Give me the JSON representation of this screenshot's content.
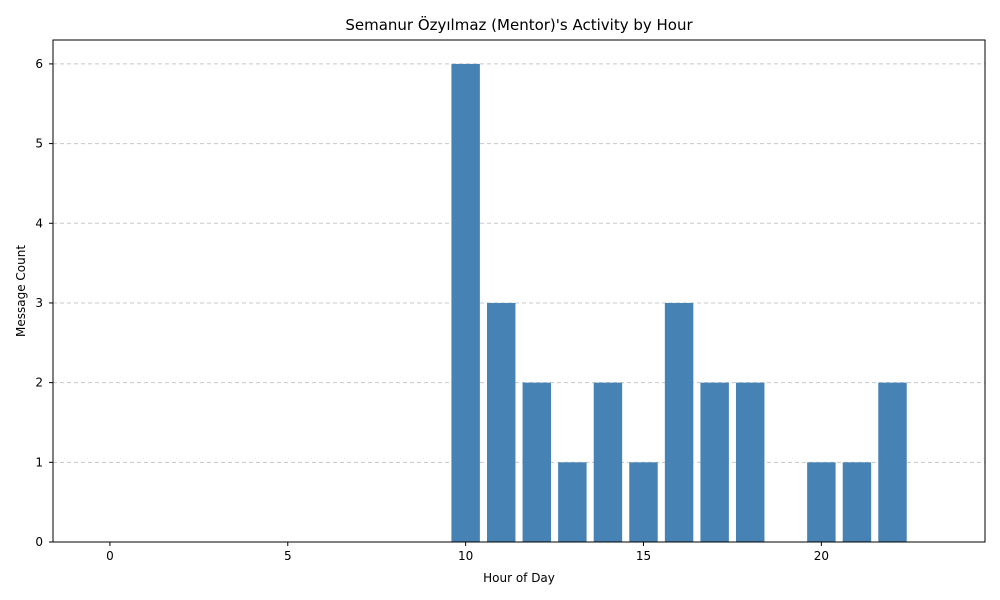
{
  "chart_data": {
    "type": "bar",
    "title": "Semanur Özyılmaz (Mentor)'s Activity by Hour",
    "xlabel": "Hour of Day",
    "ylabel": "Message Count",
    "x": [
      10,
      11,
      12,
      13,
      14,
      15,
      16,
      17,
      18,
      20,
      21,
      22
    ],
    "values": [
      6,
      3,
      2,
      1,
      2,
      1,
      3,
      2,
      2,
      1,
      1,
      2
    ],
    "xlim": [
      -1.6,
      24.6
    ],
    "ylim": [
      0,
      6.3
    ],
    "xticks": [
      0,
      5,
      10,
      15,
      20
    ],
    "yticks": [
      0,
      1,
      2,
      3,
      4,
      5,
      6
    ],
    "grid": "y-dashed",
    "bar_color": "#4682b4",
    "grid_color": "#c8c8c8"
  }
}
